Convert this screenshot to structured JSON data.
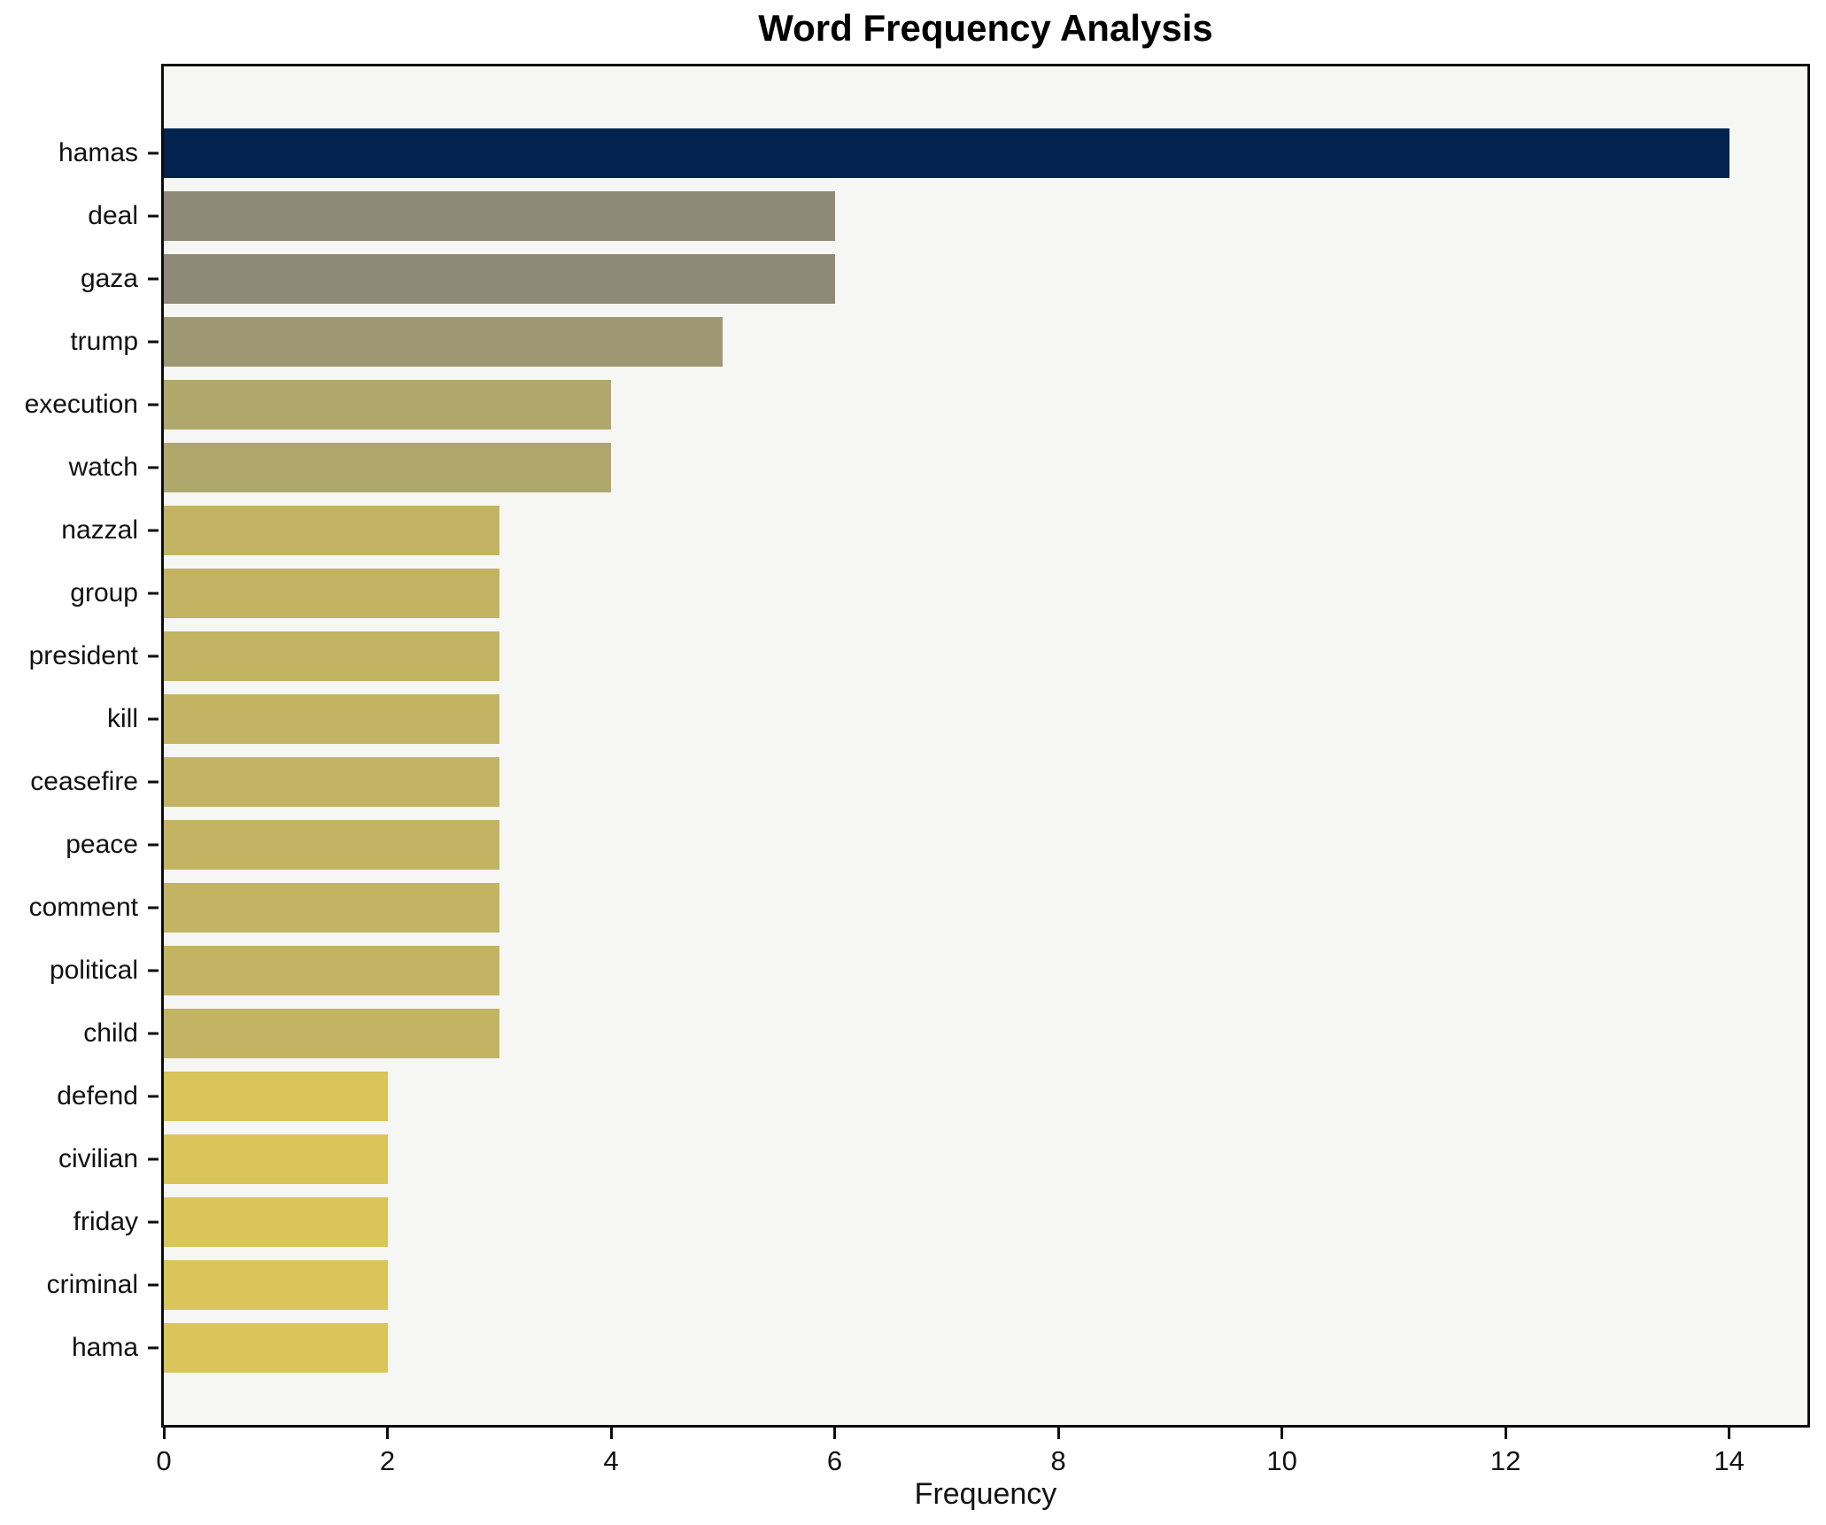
{
  "title": "Word Frequency Analysis",
  "chart_data": {
    "type": "bar",
    "orientation": "horizontal",
    "title": "Word Frequency Analysis",
    "xlabel": "Frequency",
    "ylabel": "",
    "categories": [
      "hamas",
      "deal",
      "gaza",
      "trump",
      "execution",
      "watch",
      "nazzal",
      "group",
      "president",
      "kill",
      "ceasefire",
      "peace",
      "comment",
      "political",
      "child",
      "defend",
      "civilian",
      "friday",
      "criminal",
      "hama"
    ],
    "values": [
      14,
      6,
      6,
      5,
      4,
      4,
      3,
      3,
      3,
      3,
      3,
      3,
      3,
      3,
      3,
      2,
      2,
      2,
      2,
      2
    ],
    "bar_colors": [
      "#01234d",
      "#8e8a77",
      "#8e8a77",
      "#9d9772",
      "#b0a76c",
      "#b0a76c",
      "#c3b464",
      "#c3b464",
      "#c3b464",
      "#c3b464",
      "#c3b464",
      "#c3b464",
      "#c3b464",
      "#c3b464",
      "#c3b464",
      "#d9c55a",
      "#d9c55a",
      "#d9c55a",
      "#d9c55a",
      "#d9c55a"
    ],
    "xlim": [
      0,
      14.7
    ],
    "xticks": [
      0,
      2,
      4,
      6,
      8,
      10,
      12,
      14
    ],
    "grid": false,
    "legend": null,
    "plot_background": "#f6f6f4",
    "figure_background": "#ffffff",
    "spine_color": "#0d0d0d",
    "text_color": "#111111"
  }
}
